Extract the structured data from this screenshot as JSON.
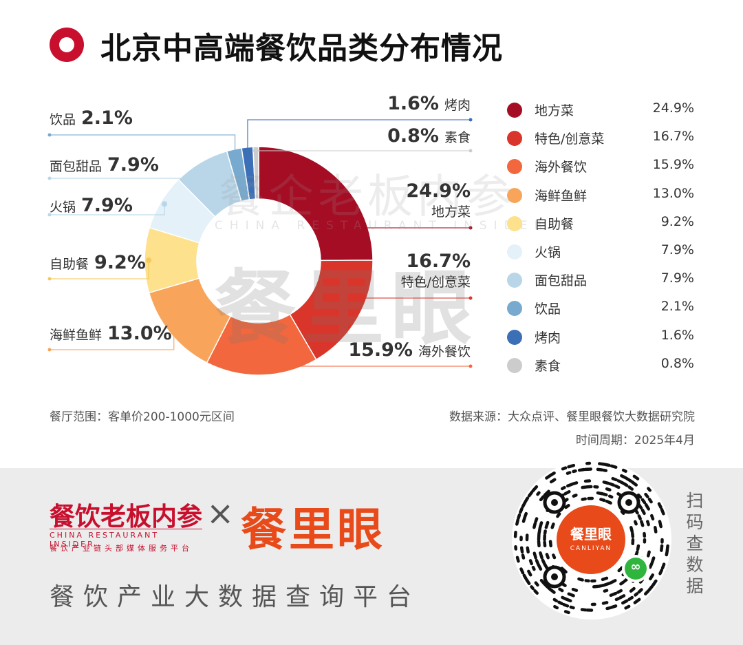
{
  "title": "北京中高端餐饮品类分布情况",
  "chart_data": {
    "type": "pie",
    "donut": true,
    "categories": [
      "地方菜",
      "特色/创意菜",
      "海外餐饮",
      "海鲜鱼鲜",
      "自助餐",
      "火锅",
      "面包甜品",
      "饮品",
      "烤肉",
      "素食"
    ],
    "values": [
      24.9,
      16.7,
      15.9,
      13.0,
      9.2,
      7.9,
      7.9,
      2.1,
      1.6,
      0.8
    ],
    "value_labels": [
      "24.9%",
      "16.7%",
      "15.9%",
      "13.0%",
      "9.2%",
      "7.9%",
      "7.9%",
      "2.1%",
      "1.6%",
      "0.8%"
    ],
    "colors": [
      "#a50d24",
      "#d9352a",
      "#f2673d",
      "#f8a55b",
      "#fde18c",
      "#e4f1f9",
      "#b9d6e8",
      "#78aacf",
      "#3b6fb6",
      "#cccccc"
    ],
    "legend": "right"
  },
  "footer": {
    "scope": "餐厅范围：客单价200-1000元区间",
    "source": "数据来源：大众点评、餐里眼餐饮大数据研究院",
    "period": "时间周期：2025年4月"
  },
  "watermark": {
    "line1": "餐企老板内参",
    "line1_en": "CHINA RESTAURANT INSIDER",
    "line2": "餐里眼"
  },
  "brand": {
    "partner_cn": "餐饮老板内参",
    "partner_en": "CHINA RESTAURANT INSIDER",
    "partner_tag": "餐饮产业链头部媒体服务平台",
    "times": "×",
    "name": "餐里眼",
    "platform": "餐饮产业大数据查询平台",
    "qr_center": "餐里眼",
    "qr_center_en": "CANLIYAN",
    "scan": [
      "扫",
      "码",
      "查",
      "数",
      "据"
    ]
  },
  "icons": {
    "title_mark": "red-ring-icon",
    "qr": "qr-code-icon",
    "mini_program": "wechat-mini-program-icon"
  }
}
